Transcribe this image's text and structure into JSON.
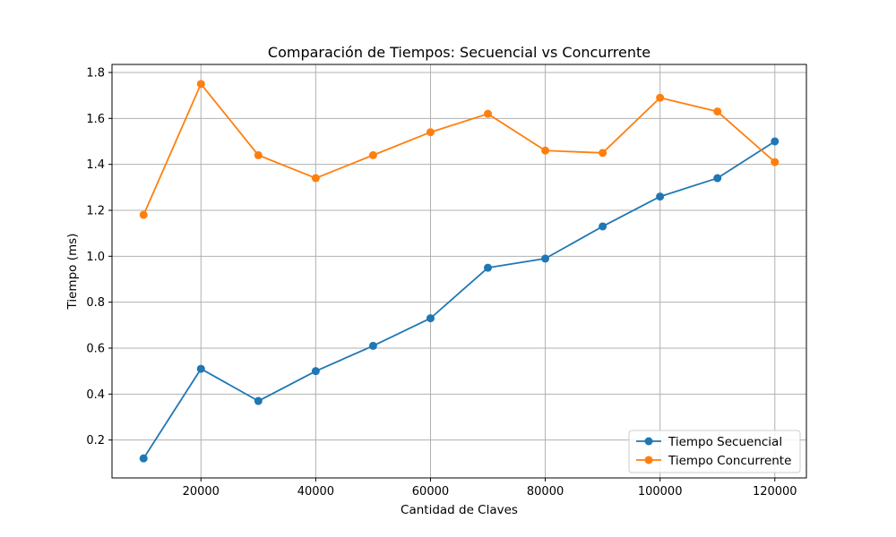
{
  "chart_data": {
    "type": "line",
    "title": "Comparación de Tiempos: Secuencial vs Concurrente",
    "xlabel": "Cantidad de Claves",
    "ylabel": "Tiempo (ms)",
    "x": [
      10000,
      20000,
      30000,
      40000,
      50000,
      60000,
      70000,
      80000,
      90000,
      100000,
      110000,
      120000
    ],
    "xlim": [
      4500,
      125500
    ],
    "ylim": [
      0.035,
      1.835
    ],
    "xticks": [
      20000,
      40000,
      60000,
      80000,
      100000,
      120000
    ],
    "yticks": [
      0.2,
      0.4,
      0.6,
      0.8,
      1.0,
      1.2,
      1.4,
      1.6,
      1.8
    ],
    "xtick_labels": [
      "20000",
      "40000",
      "60000",
      "80000",
      "100000",
      "120000"
    ],
    "ytick_labels": [
      "0.2",
      "0.4",
      "0.6",
      "0.8",
      "1.0",
      "1.2",
      "1.4",
      "1.6",
      "1.8"
    ],
    "grid": true,
    "legend_position": "lower-right",
    "series": [
      {
        "name": "Tiempo Secuencial",
        "color": "#1f77b4",
        "values": [
          0.12,
          0.51,
          0.37,
          0.5,
          0.61,
          0.73,
          0.95,
          0.99,
          1.13,
          1.26,
          1.34,
          1.5
        ]
      },
      {
        "name": "Tiempo Concurrente",
        "color": "#ff7f0e",
        "values": [
          1.18,
          1.75,
          1.44,
          1.34,
          1.44,
          1.54,
          1.62,
          1.46,
          1.45,
          1.69,
          1.63,
          1.41
        ]
      }
    ]
  }
}
